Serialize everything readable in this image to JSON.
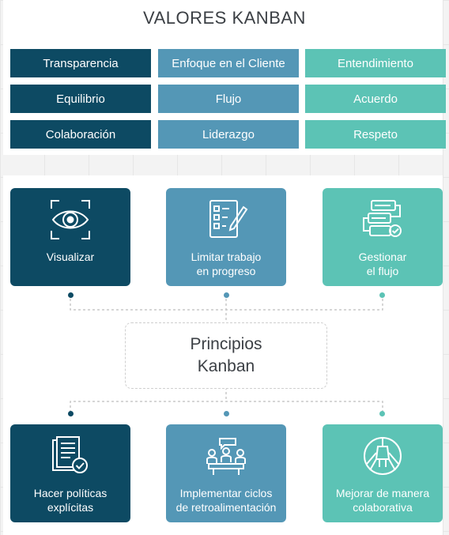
{
  "values": {
    "title": "VALORES KANBAN",
    "rows": [
      [
        "Transparencia",
        "Enfoque en el Cliente",
        "Entendimiento"
      ],
      [
        "Equilibrio",
        "Flujo",
        "Acuerdo"
      ],
      [
        "Colaboración",
        "Liderazgo",
        "Respeto"
      ]
    ]
  },
  "principles": {
    "title_line1": "Principios",
    "title_line2": "Kanban",
    "top": [
      {
        "label": "Visualizar",
        "icon": "eye-scan-icon"
      },
      {
        "label": "Limitar trabajo\nen progreso",
        "icon": "checklist-pencil-icon"
      },
      {
        "label": "Gestionar\nel flujo",
        "icon": "flow-process-icon"
      }
    ],
    "bottom": [
      {
        "label": "Hacer políticas\nexplícitas",
        "icon": "documents-check-icon"
      },
      {
        "label": "Implementar ciclos\nde retroalimentación",
        "icon": "meeting-table-icon"
      },
      {
        "label": "Mejorar de manera\ncolaborativa",
        "icon": "hands-together-icon"
      }
    ]
  },
  "colors": {
    "dark_teal": "#0d4a63",
    "steel_blue": "#5497b6",
    "mint": "#5cc3b5"
  }
}
